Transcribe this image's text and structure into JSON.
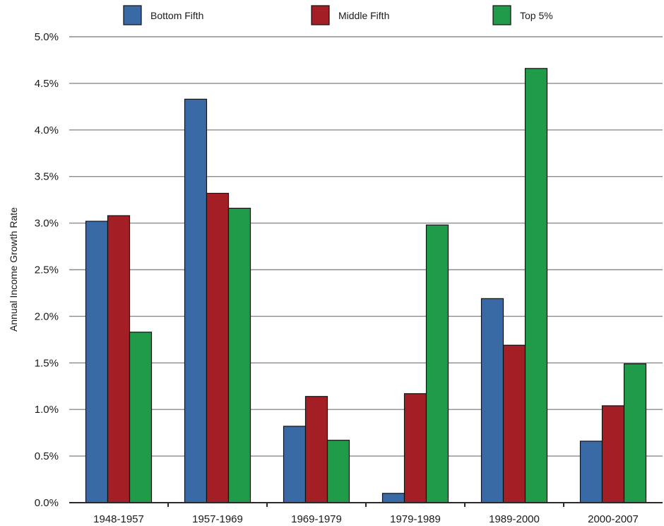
{
  "chart_data": {
    "type": "bar",
    "title": "",
    "xlabel": "",
    "ylabel": "Annual Income Growth Rate",
    "ylim": [
      0,
      5.0
    ],
    "yticks": [
      "0.0%",
      "0.5%",
      "1.0%",
      "1.5%",
      "2.0%",
      "2.5%",
      "3.0%",
      "3.5%",
      "4.0%",
      "4.5%",
      "5.0%"
    ],
    "grid": true,
    "legend_position": "top",
    "categories": [
      "1948-1957",
      "1957-1969",
      "1969-1979",
      "1979-1989",
      "1989-2000",
      "2000-2007"
    ],
    "series": [
      {
        "name": "Bottom Fifth",
        "color": "#3a6aa6",
        "values": [
          3.02,
          4.33,
          0.82,
          0.1,
          2.19,
          0.66
        ]
      },
      {
        "name": "Middle Fifth",
        "color": "#a41f25",
        "values": [
          3.08,
          3.32,
          1.14,
          1.17,
          1.69,
          1.04
        ]
      },
      {
        "name": "Top 5%",
        "color": "#1f9b4a",
        "values": [
          1.83,
          3.16,
          0.67,
          2.98,
          4.66,
          1.49
        ]
      }
    ]
  }
}
